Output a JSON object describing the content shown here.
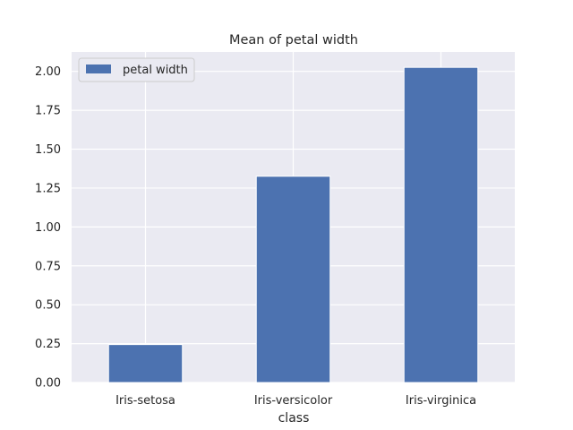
{
  "chart_data": {
    "type": "bar",
    "title": "Mean of petal width",
    "xlabel": "class",
    "ylabel": "",
    "categories": [
      "Iris-setosa",
      "Iris-versicolor",
      "Iris-virginica"
    ],
    "series": [
      {
        "name": "petal width",
        "values": [
          0.244,
          1.326,
          2.026
        ],
        "color": "#4c72b0"
      }
    ],
    "ylim": [
      0,
      2.125
    ],
    "yticks": [
      0.0,
      0.25,
      0.5,
      0.75,
      1.0,
      1.25,
      1.5,
      1.75,
      2.0
    ],
    "ytick_labels": [
      "0.00",
      "0.25",
      "0.50",
      "0.75",
      "1.00",
      "1.25",
      "1.50",
      "1.75",
      "2.00"
    ],
    "grid": true,
    "legend_position": "top-left",
    "background_color": "#eaeaf2",
    "grid_color": "#ffffff"
  }
}
